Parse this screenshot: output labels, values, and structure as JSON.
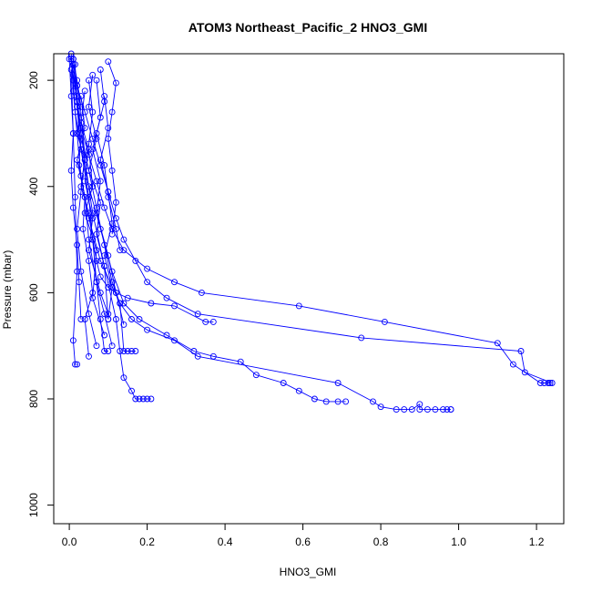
{
  "chart_data": {
    "type": "line",
    "title": "ATOM3 Northeast_Pacific_2 HNO3_GMI",
    "xlabel": "HNO3_GMI",
    "ylabel": "Pressure (mbar)",
    "xlim": [
      -0.04,
      1.27
    ],
    "ylim": [
      1035,
      150
    ],
    "y_reversed": true,
    "xticks": [
      0.0,
      0.2,
      0.4,
      0.6,
      0.8,
      1.0,
      1.2
    ],
    "xtick_labels": [
      "0.0",
      "0.2",
      "0.4",
      "0.6",
      "0.8",
      "1.0",
      "1.2"
    ],
    "yticks": [
      200,
      400,
      600,
      800,
      1000
    ],
    "ytick_labels": [
      "200",
      "400",
      "600",
      "800",
      "1000"
    ],
    "grid": false,
    "legend": "none",
    "color": "#0000ff",
    "marker": "open-circle",
    "series": [
      {
        "x": [
          0.01,
          0.02,
          0.03,
          0.02,
          0.04,
          0.03,
          0.05,
          0.06,
          0.07,
          0.08,
          0.1,
          0.12,
          0.15,
          0.21,
          0.27,
          0.35,
          0.37
        ],
        "y": [
          160,
          200,
          250,
          300,
          350,
          400,
          450,
          500,
          540,
          570,
          590,
          600,
          610,
          620,
          625,
          655,
          655
        ]
      },
      {
        "x": [
          0.005,
          0.01,
          0.02,
          0.03,
          0.05,
          0.07,
          0.09,
          0.11,
          0.14,
          0.2,
          0.27,
          0.34,
          0.59,
          0.81,
          1.1,
          1.14,
          1.21,
          1.22,
          1.23,
          1.235
        ],
        "y": [
          155,
          190,
          240,
          290,
          340,
          390,
          440,
          480,
          520,
          555,
          580,
          600,
          625,
          655,
          695,
          735,
          770,
          770,
          770,
          770
        ]
      },
      {
        "x": [
          0.01,
          0.02,
          0.04,
          0.06,
          0.08,
          0.1,
          0.12,
          0.14,
          0.17,
          0.2,
          0.25,
          0.33,
          0.75,
          1.16,
          1.17,
          1.24
        ],
        "y": [
          160,
          210,
          260,
          310,
          360,
          410,
          460,
          500,
          540,
          580,
          610,
          640,
          685,
          710,
          750,
          770
        ]
      },
      {
        "x": [
          0.005,
          0.01,
          0.015,
          0.03,
          0.05,
          0.08,
          0.11,
          0.14,
          0.18,
          0.25,
          0.32,
          0.37,
          0.44,
          0.48,
          0.55,
          0.59,
          0.63,
          0.66,
          0.69,
          0.71
        ],
        "y": [
          150,
          200,
          260,
          330,
          400,
          480,
          560,
          620,
          650,
          680,
          710,
          720,
          730,
          755,
          770,
          785,
          800,
          805,
          805,
          805
        ]
      },
      {
        "x": [
          0.01,
          0.02,
          0.03,
          0.05,
          0.07,
          0.09,
          0.11,
          0.13,
          0.16,
          0.2,
          0.27,
          0.33,
          0.69,
          0.78,
          0.8,
          0.84,
          0.86,
          0.88,
          0.9,
          0.9,
          0.92,
          0.94,
          0.96,
          0.97,
          0.98,
          0.98
        ],
        "y": [
          170,
          230,
          300,
          370,
          440,
          510,
          580,
          620,
          650,
          670,
          690,
          720,
          770,
          805,
          815,
          820,
          820,
          820,
          810,
          820,
          820,
          820,
          820,
          820,
          820,
          820
        ]
      },
      {
        "x": [
          0.015,
          0.02,
          0.04,
          0.06,
          0.09,
          0.12,
          0.13,
          0.14,
          0.16,
          0.17,
          0.18,
          0.19,
          0.2,
          0.21
        ],
        "y": [
          170,
          250,
          350,
          450,
          550,
          650,
          710,
          760,
          785,
          800,
          800,
          800,
          800,
          800
        ]
      },
      {
        "x": [
          0.005,
          0.01,
          0.02,
          0.03,
          0.05,
          0.08,
          0.13,
          0.14,
          0.15,
          0.16,
          0.17
        ],
        "y": [
          160,
          220,
          300,
          380,
          460,
          540,
          620,
          710,
          710,
          710,
          710
        ]
      },
      {
        "x": [
          0.01,
          0.02,
          0.03,
          0.05,
          0.06,
          0.07,
          0.08,
          0.09,
          0.1
        ],
        "y": [
          170,
          250,
          330,
          420,
          500,
          580,
          650,
          710,
          710
        ]
      },
      {
        "x": [
          0.005,
          0.01,
          0.015,
          0.02,
          0.01,
          0.015,
          0.02
        ],
        "y": [
          180,
          300,
          420,
          560,
          690,
          735,
          735
        ]
      },
      {
        "x": [
          0.1,
          0.12,
          0.11,
          0.1,
          0.11,
          0.12,
          0.11
        ],
        "y": [
          165,
          205,
          260,
          310,
          370,
          430,
          490
        ]
      },
      {
        "x": [
          0.05,
          0.06,
          0.05,
          0.04,
          0.06,
          0.05,
          0.08,
          0.1
        ],
        "y": [
          200,
          260,
          320,
          390,
          460,
          520,
          600,
          640
        ]
      },
      {
        "x": [
          0.02,
          0.03,
          0.04,
          0.03,
          0.02,
          0.03,
          0.05,
          0.07
        ],
        "y": [
          210,
          270,
          340,
          410,
          480,
          560,
          640,
          700
        ]
      },
      {
        "x": [
          0.08,
          0.09,
          0.07,
          0.09,
          0.1,
          0.12,
          0.13
        ],
        "y": [
          180,
          240,
          300,
          360,
          420,
          480,
          520
        ]
      },
      {
        "x": [
          0.03,
          0.04,
          0.02,
          0.04,
          0.05,
          0.07,
          0.09,
          0.11
        ],
        "y": [
          230,
          290,
          350,
          420,
          500,
          580,
          640,
          700
        ]
      },
      {
        "x": [
          0.06,
          0.05,
          0.07,
          0.05,
          0.08,
          0.07,
          0.09,
          0.1
        ],
        "y": [
          190,
          250,
          310,
          370,
          430,
          490,
          550,
          650
        ]
      },
      {
        "x": [
          0.0,
          0.005,
          0.01,
          0.005,
          0.01,
          0.02,
          0.025,
          0.03
        ],
        "y": [
          160,
          230,
          300,
          370,
          440,
          510,
          580,
          650
        ]
      },
      {
        "x": [
          0.04,
          0.03,
          0.05,
          0.06,
          0.04,
          0.07,
          0.06,
          0.09
        ],
        "y": [
          220,
          280,
          330,
          400,
          450,
          520,
          610,
          680
        ]
      },
      {
        "x": [
          0.07,
          0.08,
          0.06,
          0.08,
          0.07,
          0.1,
          0.12,
          0.14
        ],
        "y": [
          200,
          270,
          330,
          390,
          450,
          530,
          600,
          660
        ]
      },
      {
        "x": [
          0.02,
          0.03,
          0.025,
          0.04,
          0.035,
          0.05,
          0.06,
          0.04,
          0.05
        ],
        "y": [
          240,
          300,
          360,
          420,
          480,
          540,
          600,
          650,
          720
        ]
      },
      {
        "x": [
          0.09,
          0.1,
          0.08,
          0.1,
          0.11,
          0.09,
          0.11,
          0.1
        ],
        "y": [
          230,
          290,
          350,
          410,
          470,
          530,
          590,
          650
        ]
      }
    ]
  }
}
